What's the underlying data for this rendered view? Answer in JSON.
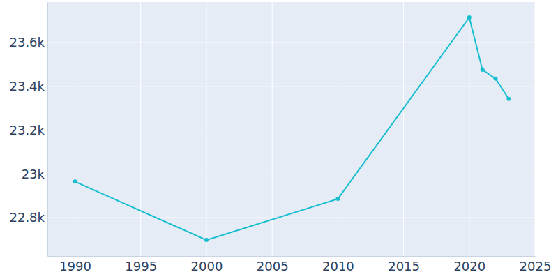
{
  "chart_data": {
    "type": "line",
    "x": [
      1990,
      2000,
      2010,
      2020,
      2021,
      2022,
      2023
    ],
    "values": [
      22965,
      22698,
      22886,
      23715,
      23476,
      23435,
      23343
    ],
    "color": "#17becf",
    "marker": "circle",
    "xlim": [
      1987.9,
      2025
    ],
    "xticks": [
      1990,
      1995,
      2000,
      2005,
      2010,
      2015,
      2020,
      2025
    ],
    "ylim": [
      22625,
      23785
    ],
    "yticks": [
      {
        "value": 22800,
        "label": "22.8k"
      },
      {
        "value": 23000,
        "label": "23k"
      },
      {
        "value": 23200,
        "label": "23.2k"
      },
      {
        "value": 23400,
        "label": "23.4k"
      },
      {
        "value": 23600,
        "label": "23.6k"
      }
    ],
    "grid": true
  }
}
